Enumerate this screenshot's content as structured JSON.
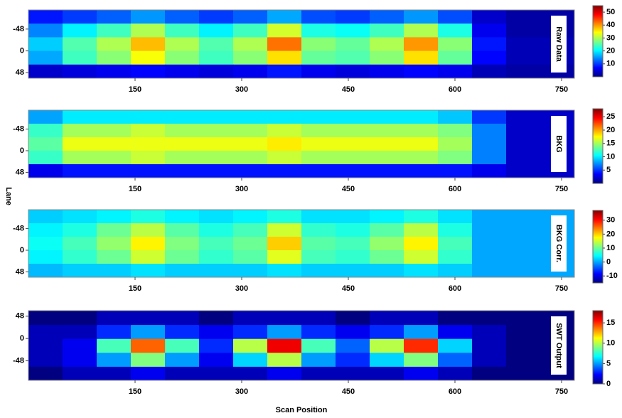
{
  "figure": {
    "xlabel": "Scan Position",
    "ylabel": "Lane"
  },
  "chart_data": [
    {
      "type": "heatmap",
      "label": "Raw Data",
      "colormap": "jet",
      "x": [
        24,
        72,
        120,
        168,
        216,
        264,
        312,
        360,
        408,
        456,
        504,
        552,
        600,
        648,
        696,
        744
      ],
      "y": [
        -75,
        -45,
        -15,
        15,
        45
      ],
      "values": [
        [
          8,
          10,
          12,
          15,
          12,
          10,
          12,
          16,
          11,
          10,
          12,
          15,
          11,
          4,
          2,
          2
        ],
        [
          14,
          20,
          24,
          30,
          24,
          20,
          24,
          32,
          22,
          21,
          24,
          30,
          22,
          6,
          2,
          2
        ],
        [
          18,
          25,
          30,
          38,
          30,
          25,
          30,
          42,
          28,
          26,
          30,
          40,
          28,
          8,
          3,
          3
        ],
        [
          16,
          24,
          28,
          34,
          28,
          24,
          28,
          36,
          26,
          25,
          28,
          36,
          26,
          7,
          3,
          3
        ],
        [
          4,
          5,
          6,
          7,
          6,
          5,
          6,
          8,
          6,
          5,
          6,
          7,
          6,
          3,
          2,
          2
        ]
      ],
      "xlim": [
        0,
        768
      ],
      "ylim": [
        60,
        -90
      ],
      "xticks": [
        150,
        300,
        450,
        600,
        750
      ],
      "yticks": [
        -48,
        0,
        48
      ],
      "clim": [
        0,
        55
      ],
      "cticks": [
        10,
        20,
        30,
        40,
        50
      ]
    },
    {
      "type": "heatmap",
      "label": "BKG",
      "colormap": "jet",
      "x": [
        24,
        72,
        120,
        168,
        216,
        264,
        312,
        360,
        408,
        456,
        504,
        552,
        600,
        648,
        696,
        744
      ],
      "y": [
        -75,
        -45,
        -15,
        15,
        45
      ],
      "values": [
        [
          8,
          10,
          10,
          10,
          10,
          10,
          10,
          10,
          10,
          10,
          10,
          10,
          9,
          5,
          2,
          2
        ],
        [
          12,
          15,
          15,
          16,
          15,
          15,
          15,
          16,
          15,
          15,
          15,
          15,
          14,
          7,
          2,
          2
        ],
        [
          13,
          17,
          17,
          17,
          17,
          17,
          17,
          18,
          17,
          17,
          17,
          17,
          15,
          7,
          2,
          2
        ],
        [
          12,
          15,
          15,
          16,
          15,
          15,
          15,
          16,
          15,
          15,
          15,
          15,
          14,
          7,
          2,
          2
        ],
        [
          3,
          4,
          4,
          4,
          4,
          4,
          4,
          4,
          4,
          4,
          4,
          4,
          4,
          3,
          2,
          2
        ]
      ],
      "xlim": [
        0,
        768
      ],
      "ylim": [
        60,
        -90
      ],
      "xticks": [
        150,
        300,
        450,
        600,
        750
      ],
      "yticks": [
        -48,
        0,
        48
      ],
      "clim": [
        0,
        28
      ],
      "cticks": [
        5,
        10,
        15,
        20,
        25
      ]
    },
    {
      "type": "heatmap",
      "label": "BKG Corr.",
      "colormap": "jet",
      "x": [
        24,
        72,
        120,
        168,
        216,
        264,
        312,
        360,
        408,
        456,
        504,
        552,
        600,
        648,
        696,
        744
      ],
      "y": [
        -75,
        -45,
        -15,
        15,
        45
      ],
      "values": [
        [
          2,
          3,
          4,
          6,
          4,
          3,
          4,
          6,
          3,
          3,
          4,
          6,
          3,
          0,
          0,
          0
        ],
        [
          4,
          6,
          10,
          14,
          9,
          6,
          8,
          15,
          7,
          6,
          9,
          14,
          6,
          0,
          0,
          0
        ],
        [
          5,
          8,
          12,
          18,
          11,
          8,
          10,
          20,
          9,
          8,
          12,
          18,
          8,
          0,
          0,
          0
        ],
        [
          4,
          7,
          10,
          15,
          10,
          7,
          9,
          16,
          8,
          7,
          10,
          15,
          7,
          0,
          0,
          0
        ],
        [
          1,
          2,
          2,
          3,
          2,
          2,
          2,
          3,
          2,
          2,
          2,
          3,
          2,
          0,
          0,
          0
        ]
      ],
      "xlim": [
        0,
        768
      ],
      "ylim": [
        60,
        -90
      ],
      "xticks": [
        150,
        300,
        450,
        600,
        750
      ],
      "yticks": [
        -48,
        0,
        48
      ],
      "clim": [
        -15,
        37
      ],
      "cticks": [
        -10,
        0,
        10,
        20,
        30
      ]
    },
    {
      "type": "heatmap",
      "label": "SWT Output",
      "colormap": "jet",
      "x": [
        24,
        72,
        120,
        168,
        216,
        264,
        312,
        360,
        408,
        456,
        504,
        552,
        600,
        648,
        696,
        744
      ],
      "y": [
        -75,
        -45,
        -15,
        15,
        45
      ],
      "values": [
        [
          0,
          1,
          1,
          2,
          1,
          1,
          1,
          2,
          1,
          1,
          1,
          2,
          1,
          0,
          0,
          0
        ],
        [
          1,
          2,
          5,
          9,
          5,
          2,
          6,
          10,
          5,
          3,
          6,
          9,
          4,
          1,
          0,
          0
        ],
        [
          1,
          2,
          8,
          14,
          8,
          3,
          10,
          16,
          8,
          4,
          10,
          15,
          6,
          1,
          0,
          0
        ],
        [
          1,
          1,
          3,
          5,
          3,
          2,
          3,
          5,
          3,
          2,
          3,
          5,
          2,
          1,
          0,
          0
        ],
        [
          0,
          0,
          1,
          1,
          1,
          0,
          1,
          1,
          1,
          0,
          1,
          1,
          0,
          0,
          0,
          0
        ]
      ],
      "xlim": [
        0,
        768
      ],
      "ylim": [
        -90,
        60
      ],
      "xticks": [
        150,
        300,
        450,
        600,
        750
      ],
      "yticks": [
        48,
        0,
        -48
      ],
      "clim": [
        0,
        18
      ],
      "cticks": [
        0,
        5,
        10,
        15
      ]
    }
  ]
}
